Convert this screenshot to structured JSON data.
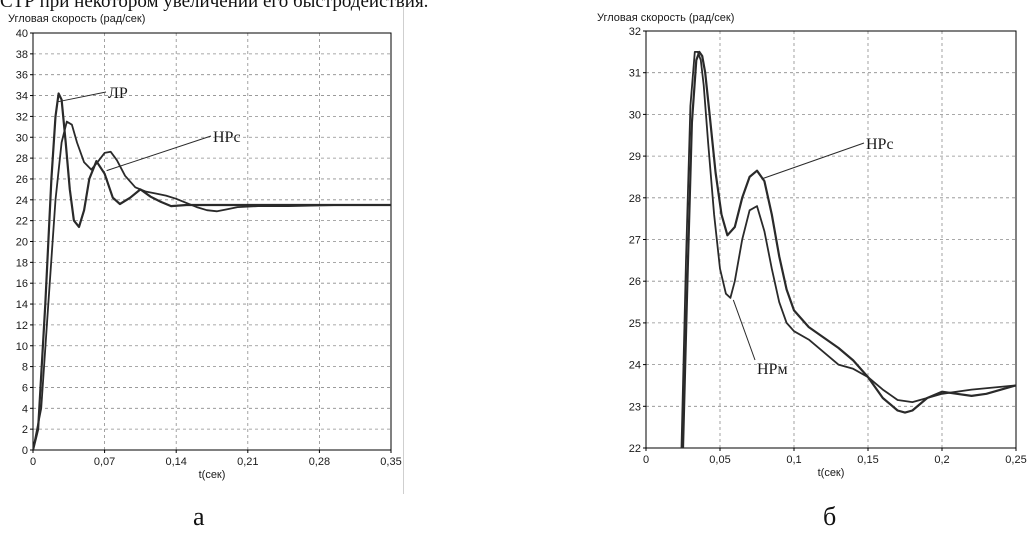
{
  "header_text": "СТР при некотором увеличении его быстродействия.",
  "colors": {
    "curve": "#2a2a2a",
    "grid": "#8c8c8c",
    "axis": "#000000",
    "text": "#1a1a1a"
  },
  "chart_data": [
    {
      "type": "line",
      "caption": "а",
      "title": "Угловая скорость (рад/сек)",
      "xlabel": "t(сек)",
      "ylabel": "",
      "xlim": [
        0,
        0.35
      ],
      "ylim": [
        0,
        40
      ],
      "xticks": [
        0,
        0.07,
        0.14,
        0.21,
        0.28,
        0.35
      ],
      "xtick_labels": [
        "0",
        "0,07",
        "0,14",
        "0,21",
        "0,28",
        "0,35"
      ],
      "yticks": [
        0,
        2,
        4,
        6,
        8,
        10,
        12,
        14,
        16,
        18,
        20,
        22,
        24,
        26,
        28,
        30,
        32,
        34,
        36,
        38,
        40
      ],
      "ytick_labels": [
        "0",
        "2",
        "4",
        "6",
        "8",
        "10",
        "12",
        "14",
        "16",
        "18",
        "20",
        "22",
        "24",
        "26",
        "28",
        "30",
        "32",
        "34",
        "36",
        "38",
        "40"
      ],
      "grid": true,
      "series": [
        {
          "name": "ЛР",
          "x": [
            0,
            0.005,
            0.012,
            0.018,
            0.022,
            0.025,
            0.028,
            0.032,
            0.036,
            0.04,
            0.045,
            0.05,
            0.055,
            0.062,
            0.07,
            0.078,
            0.085,
            0.095,
            0.105,
            0.115,
            0.125,
            0.135,
            0.15,
            0.17,
            0.2,
            0.25,
            0.3,
            0.35
          ],
          "y": [
            0,
            2,
            14,
            26,
            32,
            34.2,
            33.6,
            29.5,
            25,
            22,
            21.4,
            23,
            26,
            27.7,
            26.5,
            24.2,
            23.6,
            24.2,
            25,
            24.3,
            23.8,
            23.4,
            23.5,
            23.5,
            23.5,
            23.5,
            23.5,
            23.5
          ]
        },
        {
          "name": "НРс",
          "x": [
            0,
            0.008,
            0.015,
            0.022,
            0.028,
            0.033,
            0.038,
            0.043,
            0.05,
            0.057,
            0.063,
            0.07,
            0.076,
            0.082,
            0.09,
            0.1,
            0.11,
            0.12,
            0.13,
            0.14,
            0.15,
            0.16,
            0.17,
            0.18,
            0.19,
            0.2,
            0.22,
            0.25,
            0.3,
            0.35
          ],
          "y": [
            0,
            4,
            14,
            24,
            29.5,
            31.5,
            31.2,
            29.5,
            27.6,
            26.9,
            27.6,
            28.5,
            28.6,
            27.8,
            26.3,
            25.2,
            24.8,
            24.6,
            24.4,
            24.1,
            23.7,
            23.3,
            23.0,
            22.9,
            23.1,
            23.3,
            23.4,
            23.4,
            23.5,
            23.5
          ]
        }
      ],
      "annotations": [
        "ЛР",
        "НРс"
      ]
    },
    {
      "type": "line",
      "caption": "б",
      "title": "Угловая скорость (рад/сек)",
      "xlabel": "t(сек)",
      "ylabel": "",
      "xlim": [
        0,
        0.25
      ],
      "ylim": [
        22,
        32
      ],
      "xticks": [
        0,
        0.05,
        0.1,
        0.15,
        0.2,
        0.25
      ],
      "xtick_labels": [
        "0",
        "0,05",
        "0,1",
        "0,15",
        "0,2",
        "0,25"
      ],
      "yticks": [
        22,
        23,
        24,
        25,
        26,
        27,
        28,
        29,
        30,
        31,
        32
      ],
      "ytick_labels": [
        "22",
        "23",
        "24",
        "25",
        "26",
        "27",
        "28",
        "29",
        "30",
        "31",
        "32"
      ],
      "grid": true,
      "series": [
        {
          "name": "НРс",
          "x": [
            0.025,
            0.028,
            0.031,
            0.034,
            0.036,
            0.038,
            0.04,
            0.043,
            0.047,
            0.051,
            0.055,
            0.06,
            0.065,
            0.07,
            0.075,
            0.08,
            0.085,
            0.09,
            0.095,
            0.1,
            0.11,
            0.12,
            0.13,
            0.14,
            0.15,
            0.16,
            0.17,
            0.175,
            0.18,
            0.19,
            0.2,
            0.21,
            0.22,
            0.23,
            0.24,
            0.25
          ],
          "y": [
            22.0,
            26.0,
            29.8,
            31.3,
            31.5,
            31.4,
            31.0,
            30.0,
            28.6,
            27.6,
            27.1,
            27.3,
            28.0,
            28.5,
            28.65,
            28.4,
            27.6,
            26.6,
            25.8,
            25.3,
            24.9,
            24.65,
            24.4,
            24.1,
            23.7,
            23.2,
            22.9,
            22.85,
            22.9,
            23.2,
            23.35,
            23.3,
            23.25,
            23.3,
            23.4,
            23.5
          ]
        },
        {
          "name": "НРм",
          "x": [
            0.024,
            0.027,
            0.03,
            0.033,
            0.035,
            0.037,
            0.039,
            0.042,
            0.046,
            0.05,
            0.054,
            0.057,
            0.06,
            0.065,
            0.07,
            0.075,
            0.08,
            0.085,
            0.09,
            0.095,
            0.1,
            0.11,
            0.12,
            0.13,
            0.14,
            0.15,
            0.16,
            0.17,
            0.18,
            0.19,
            0.2,
            0.22,
            0.25
          ],
          "y": [
            22.0,
            26.5,
            30.2,
            31.5,
            31.5,
            31.3,
            30.7,
            29.3,
            27.6,
            26.3,
            25.7,
            25.6,
            26.0,
            27.0,
            27.7,
            27.8,
            27.2,
            26.3,
            25.5,
            25.0,
            24.8,
            24.6,
            24.3,
            24.0,
            23.9,
            23.7,
            23.4,
            23.15,
            23.1,
            23.2,
            23.3,
            23.4,
            23.5
          ]
        }
      ],
      "annotations": [
        "НРс",
        "НРм"
      ]
    }
  ]
}
